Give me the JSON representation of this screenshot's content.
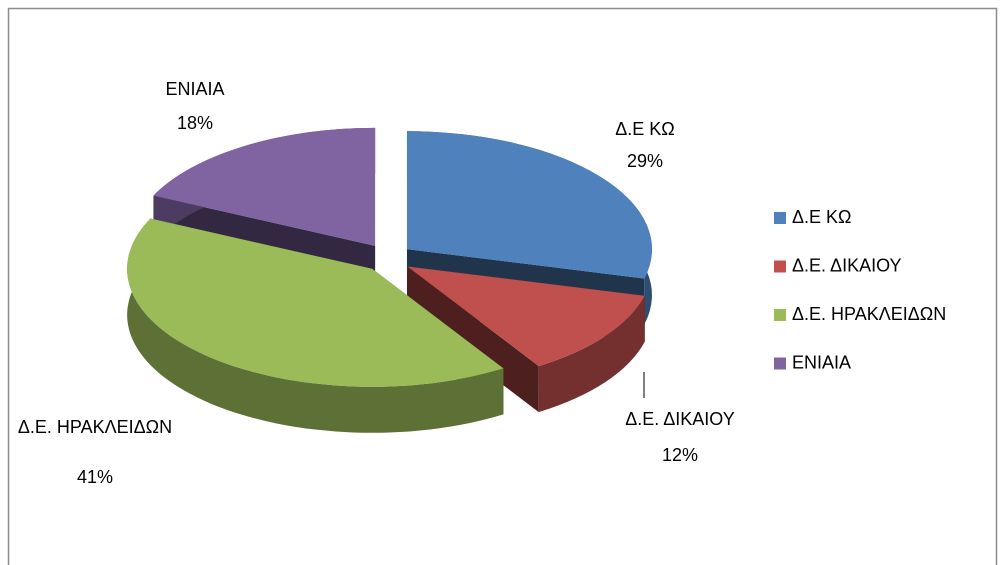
{
  "chart_data": {
    "type": "pie3d",
    "categories": [
      "Δ.Ε ΚΩ",
      "Δ.Ε. ΔΙΚΑΙΟΥ",
      "Δ.Ε. ΗΡΑΚΛΕΙΔΩΝ",
      "ΕΝΙΑΙΑ"
    ],
    "values": [
      29,
      12,
      41,
      18
    ],
    "value_labels": [
      "29%",
      "12%",
      "41%",
      "18%"
    ],
    "colors": [
      "#4f81bd",
      "#c0504d",
      "#9bbb59",
      "#8064a2"
    ],
    "legend": "right"
  }
}
